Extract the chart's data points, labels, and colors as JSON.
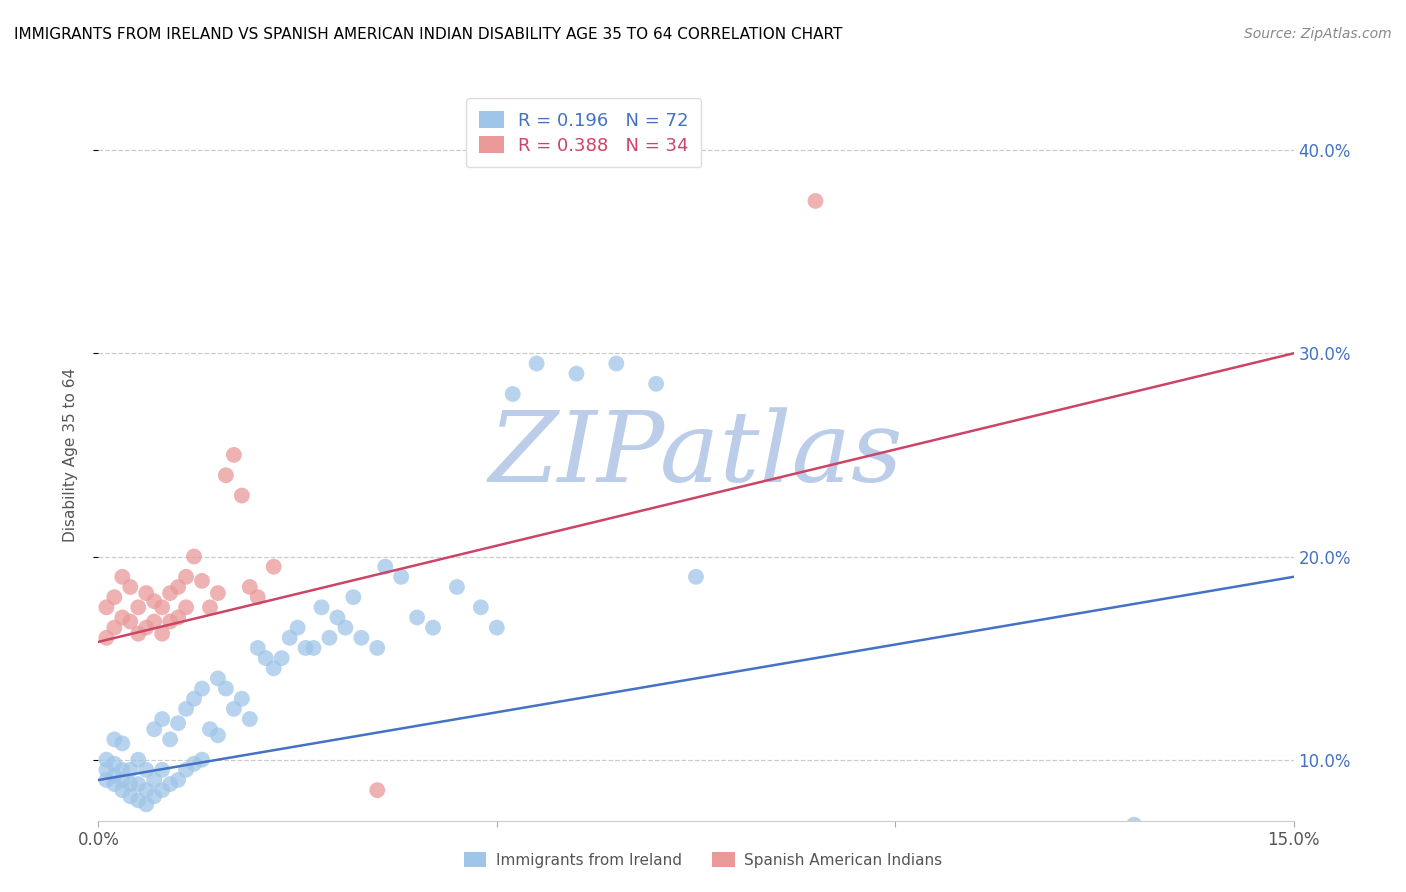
{
  "title": "IMMIGRANTS FROM IRELAND VS SPANISH AMERICAN INDIAN DISABILITY AGE 35 TO 64 CORRELATION CHART",
  "source": "Source: ZipAtlas.com",
  "ylabel": "Disability Age 35 to 64",
  "xmin": 0.0,
  "xmax": 0.15,
  "ymin": 0.07,
  "ymax": 0.43,
  "yticks": [
    0.1,
    0.2,
    0.3,
    0.4
  ],
  "ytick_labels": [
    "10.0%",
    "20.0%",
    "30.0%",
    "40.0%"
  ],
  "xticks": [
    0.0,
    0.05,
    0.1,
    0.15
  ],
  "xtick_labels": [
    "0.0%",
    "",
    "",
    "15.0%"
  ],
  "legend_r1_val": "0.196",
  "legend_n1_val": "72",
  "legend_r2_val": "0.388",
  "legend_n2_val": "34",
  "blue_color": "#9fc5e8",
  "pink_color": "#ea9999",
  "trend_blue": "#4472c4",
  "trend_pink": "#cc4466",
  "label1": "Immigrants from Ireland",
  "label2": "Spanish American Indians",
  "watermark": "ZIPatlas",
  "watermark_color_r": 180,
  "watermark_color_g": 200,
  "watermark_color_b": 230,
  "blue_points_x": [
    0.001,
    0.001,
    0.001,
    0.002,
    0.002,
    0.002,
    0.002,
    0.003,
    0.003,
    0.003,
    0.003,
    0.004,
    0.004,
    0.004,
    0.005,
    0.005,
    0.005,
    0.006,
    0.006,
    0.006,
    0.007,
    0.007,
    0.007,
    0.008,
    0.008,
    0.008,
    0.009,
    0.009,
    0.01,
    0.01,
    0.011,
    0.011,
    0.012,
    0.012,
    0.013,
    0.013,
    0.014,
    0.015,
    0.015,
    0.016,
    0.017,
    0.018,
    0.019,
    0.02,
    0.021,
    0.022,
    0.023,
    0.024,
    0.025,
    0.026,
    0.027,
    0.028,
    0.029,
    0.03,
    0.031,
    0.032,
    0.033,
    0.035,
    0.036,
    0.038,
    0.04,
    0.042,
    0.045,
    0.048,
    0.05,
    0.052,
    0.055,
    0.06,
    0.065,
    0.07,
    0.075,
    0.13
  ],
  "blue_points_y": [
    0.09,
    0.095,
    0.1,
    0.088,
    0.092,
    0.098,
    0.11,
    0.085,
    0.09,
    0.095,
    0.108,
    0.082,
    0.088,
    0.095,
    0.08,
    0.088,
    0.1,
    0.078,
    0.085,
    0.095,
    0.082,
    0.09,
    0.115,
    0.085,
    0.095,
    0.12,
    0.088,
    0.11,
    0.09,
    0.118,
    0.095,
    0.125,
    0.098,
    0.13,
    0.1,
    0.135,
    0.115,
    0.112,
    0.14,
    0.135,
    0.125,
    0.13,
    0.12,
    0.155,
    0.15,
    0.145,
    0.15,
    0.16,
    0.165,
    0.155,
    0.155,
    0.175,
    0.16,
    0.17,
    0.165,
    0.18,
    0.16,
    0.155,
    0.195,
    0.19,
    0.17,
    0.165,
    0.185,
    0.175,
    0.165,
    0.28,
    0.295,
    0.29,
    0.295,
    0.285,
    0.19,
    0.068
  ],
  "pink_points_x": [
    0.001,
    0.001,
    0.002,
    0.002,
    0.003,
    0.003,
    0.004,
    0.004,
    0.005,
    0.005,
    0.006,
    0.006,
    0.007,
    0.007,
    0.008,
    0.008,
    0.009,
    0.009,
    0.01,
    0.01,
    0.011,
    0.011,
    0.012,
    0.013,
    0.014,
    0.015,
    0.016,
    0.017,
    0.018,
    0.019,
    0.02,
    0.022,
    0.035,
    0.09
  ],
  "pink_points_y": [
    0.16,
    0.175,
    0.165,
    0.18,
    0.17,
    0.19,
    0.168,
    0.185,
    0.162,
    0.175,
    0.165,
    0.182,
    0.168,
    0.178,
    0.162,
    0.175,
    0.168,
    0.182,
    0.17,
    0.185,
    0.175,
    0.19,
    0.2,
    0.188,
    0.175,
    0.182,
    0.24,
    0.25,
    0.23,
    0.185,
    0.18,
    0.195,
    0.085,
    0.375
  ],
  "blue_trend_x": [
    0.0,
    0.15
  ],
  "blue_trend_y": [
    0.09,
    0.19
  ],
  "pink_trend_x": [
    0.0,
    0.15
  ],
  "pink_trend_y": [
    0.158,
    0.3
  ]
}
